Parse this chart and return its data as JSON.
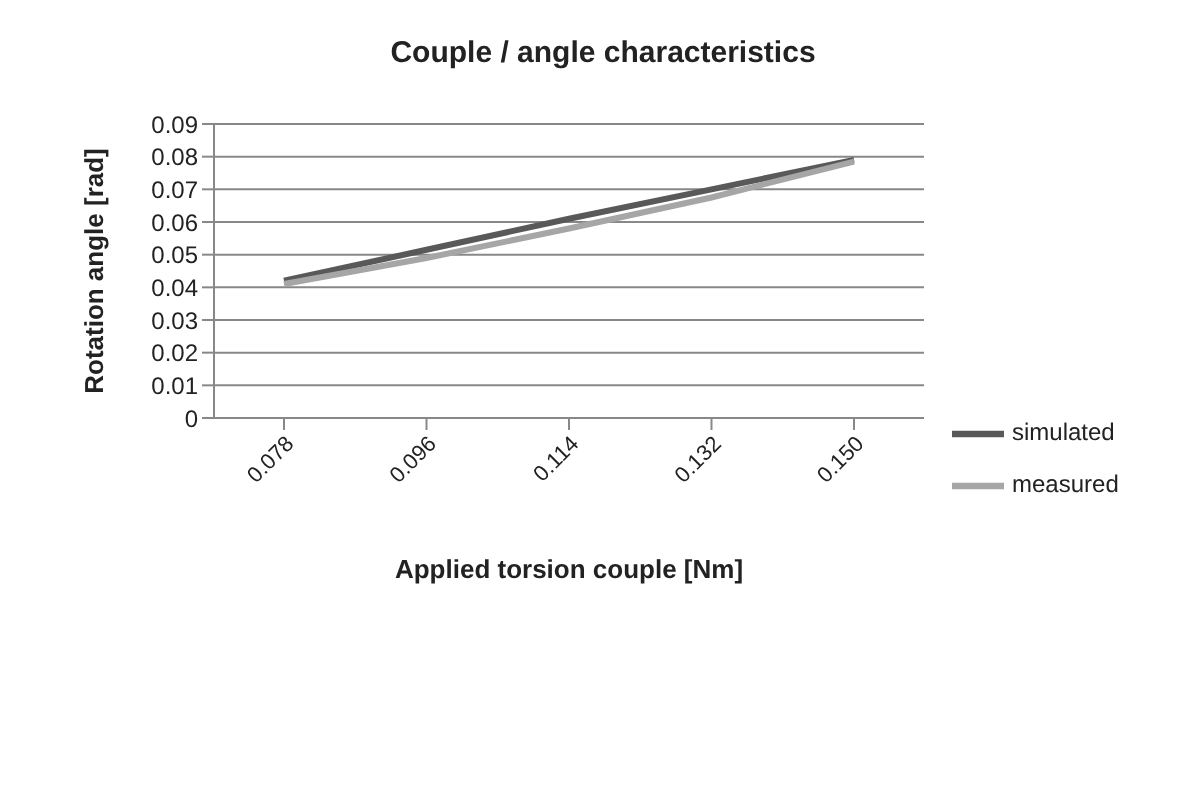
{
  "chart_data": {
    "type": "line",
    "title": "Couple / angle characteristics",
    "xlabel": "Applied torsion couple [Nm]",
    "ylabel": "Rotation angle [rad]",
    "categories": [
      "0.078",
      "0.096",
      "0.114",
      "0.132",
      "0.150"
    ],
    "series": [
      {
        "name": "simulated",
        "color": "#595959",
        "values": [
          0.042,
          0.0515,
          0.061,
          0.07,
          0.079
        ]
      },
      {
        "name": "measured",
        "color": "#a6a6a6",
        "values": [
          0.041,
          0.049,
          0.058,
          0.0675,
          0.0785
        ]
      }
    ],
    "ylim": [
      0,
      0.09
    ],
    "yticks": [
      0,
      0.01,
      0.02,
      0.03,
      0.04,
      0.05,
      0.06,
      0.07,
      0.08,
      0.09
    ],
    "grid": "y",
    "legend": "right",
    "marker": "none",
    "line_style": "solid"
  }
}
